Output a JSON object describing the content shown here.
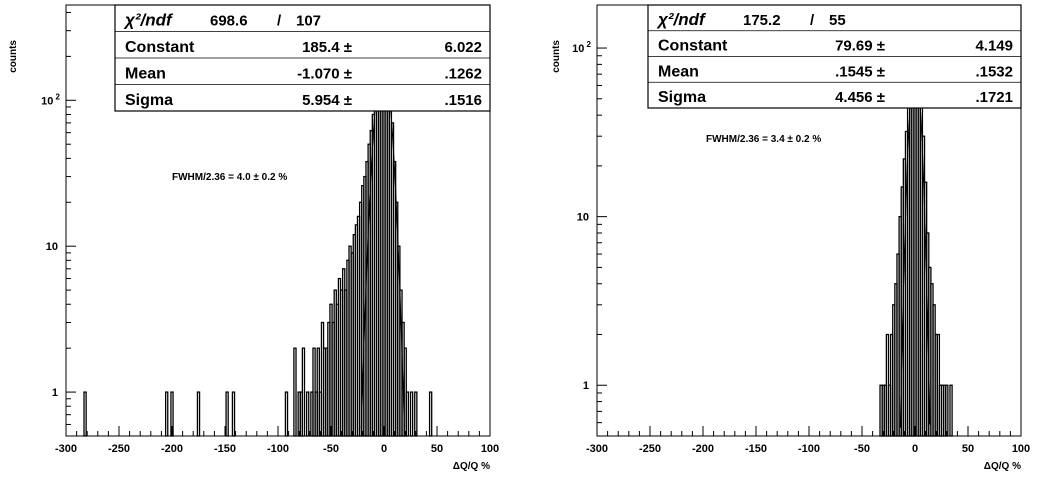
{
  "chart_data": [
    {
      "type": "histogram",
      "xlabel": "ΔQ/Q %",
      "ylabel": "counts",
      "xlim": [
        -300,
        100
      ],
      "ylim": [
        0.5,
        450
      ],
      "yscale": "log",
      "xticks": [
        -300,
        -250,
        -200,
        -150,
        -100,
        -50,
        0,
        50,
        100
      ],
      "xtick_labels": [
        "-300",
        "-250",
        "-200",
        "-150",
        "-100",
        "-50",
        "0",
        "50",
        "100"
      ],
      "yticks": [
        1,
        10,
        100
      ],
      "ytick_labels": [
        "1",
        "10",
        "10 2"
      ],
      "stats": {
        "chi2_label": "χ²/ndf",
        "chi2": "698.6",
        "slash": "/",
        "ndf": "107",
        "rows": [
          {
            "name": "Constant",
            "value": "185.4 ±",
            "error": "6.022"
          },
          {
            "name": "Mean",
            "value": "-1.070 ±",
            "error": ".1262"
          },
          {
            "name": "Sigma",
            "value": "5.954 ±",
            "error": ".1516"
          }
        ]
      },
      "fit": {
        "model": "gaussian",
        "constant": 185.4,
        "mean": -1.07,
        "sigma": 5.954
      },
      "annotation": "FWHM/2.36 = 4.0 ± 0.2 %",
      "bins": [
        [
          -282,
          1
        ],
        [
          -205,
          1
        ],
        [
          -200,
          1
        ],
        [
          -175,
          1
        ],
        [
          -148,
          1
        ],
        [
          -142,
          1
        ],
        [
          -92,
          1
        ],
        [
          -84,
          2
        ],
        [
          -80,
          1
        ],
        [
          -78,
          1
        ],
        [
          -76,
          2
        ],
        [
          -72,
          1
        ],
        [
          -68,
          1
        ],
        [
          -66,
          2
        ],
        [
          -64,
          1
        ],
        [
          -62,
          2
        ],
        [
          -60,
          1
        ],
        [
          -58,
          3
        ],
        [
          -56,
          2
        ],
        [
          -54,
          2
        ],
        [
          -52,
          3
        ],
        [
          -50,
          4
        ],
        [
          -48,
          3
        ],
        [
          -46,
          5
        ],
        [
          -44,
          4
        ],
        [
          -42,
          6
        ],
        [
          -40,
          5
        ],
        [
          -38,
          7
        ],
        [
          -36,
          5
        ],
        [
          -34,
          8
        ],
        [
          -32,
          10
        ],
        [
          -30,
          9
        ],
        [
          -28,
          12
        ],
        [
          -26,
          14
        ],
        [
          -24,
          16
        ],
        [
          -22,
          20
        ],
        [
          -20,
          26
        ],
        [
          -18,
          30
        ],
        [
          -16,
          38
        ],
        [
          -14,
          50
        ],
        [
          -12,
          62
        ],
        [
          -10,
          80
        ],
        [
          -8,
          100
        ],
        [
          -6,
          125
        ],
        [
          -4,
          150
        ],
        [
          -2,
          175
        ],
        [
          0,
          190
        ],
        [
          2,
          180
        ],
        [
          4,
          150
        ],
        [
          6,
          110
        ],
        [
          8,
          70
        ],
        [
          10,
          38
        ],
        [
          12,
          20
        ],
        [
          14,
          10
        ],
        [
          16,
          5
        ],
        [
          18,
          3
        ],
        [
          20,
          2
        ],
        [
          22,
          1
        ],
        [
          26,
          1
        ],
        [
          30,
          1
        ],
        [
          44,
          1
        ]
      ]
    },
    {
      "type": "histogram",
      "xlabel": "ΔQ/Q %",
      "ylabel": "counts",
      "xlim": [
        -300,
        100
      ],
      "ylim": [
        0.5,
        180
      ],
      "yscale": "log",
      "xticks": [
        -300,
        -250,
        -200,
        -150,
        -100,
        -50,
        0,
        50,
        100
      ],
      "xtick_labels": [
        "-300",
        "-250",
        "-200",
        "-150",
        "-100",
        "-50",
        "0",
        "50",
        "100"
      ],
      "yticks": [
        1,
        10,
        100
      ],
      "ytick_labels": [
        "1",
        "10",
        "10 2"
      ],
      "stats": {
        "chi2_label": "χ²/ndf",
        "chi2": "175.2",
        "slash": "/",
        "ndf": "55",
        "rows": [
          {
            "name": "Constant",
            "value": "79.69 ±",
            "error": "4.149"
          },
          {
            "name": "Mean",
            "value": ".1545 ±",
            "error": ".1532"
          },
          {
            "name": "Sigma",
            "value": "4.456 ±",
            "error": ".1721"
          }
        ]
      },
      "fit": {
        "model": "gaussian",
        "constant": 79.69,
        "mean": 0.1545,
        "sigma": 4.456
      },
      "annotation": "FWHM/2.36 = 3.4 ± 0.2 %",
      "bins": [
        [
          -32,
          1
        ],
        [
          -30,
          1
        ],
        [
          -28,
          1
        ],
        [
          -26,
          2
        ],
        [
          -24,
          1
        ],
        [
          -22,
          2
        ],
        [
          -20,
          3
        ],
        [
          -18,
          4
        ],
        [
          -16,
          6
        ],
        [
          -14,
          10
        ],
        [
          -12,
          15
        ],
        [
          -10,
          22
        ],
        [
          -8,
          32
        ],
        [
          -6,
          45
        ],
        [
          -4,
          60
        ],
        [
          -2,
          75
        ],
        [
          0,
          82
        ],
        [
          2,
          78
        ],
        [
          4,
          65
        ],
        [
          6,
          48
        ],
        [
          8,
          30
        ],
        [
          10,
          16
        ],
        [
          12,
          8
        ],
        [
          14,
          5
        ],
        [
          16,
          4
        ],
        [
          18,
          3
        ],
        [
          20,
          2
        ],
        [
          22,
          2
        ],
        [
          24,
          1
        ],
        [
          26,
          1
        ],
        [
          28,
          1
        ],
        [
          30,
          1
        ],
        [
          34,
          1
        ]
      ]
    }
  ]
}
